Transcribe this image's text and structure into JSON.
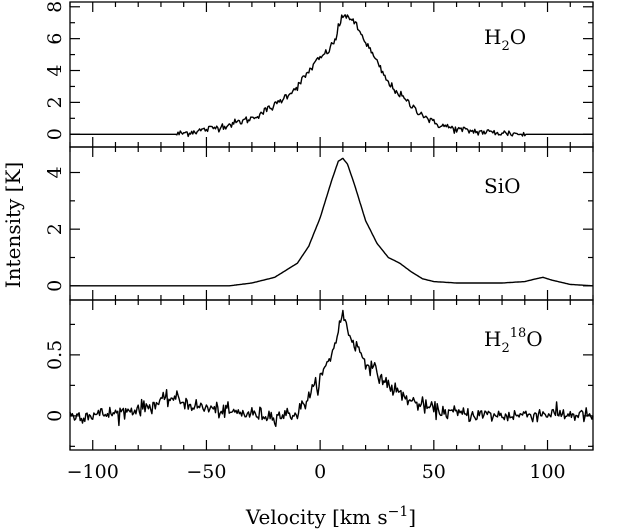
{
  "chart_data": {
    "type": "line",
    "xlabel": "Velocity [km s",
    "xlabel_exponent": "−1",
    "xlabel_close": "]",
    "ylabel": "Intensity [K]",
    "xlim": [
      -110,
      120
    ],
    "x_ticks": [
      -100,
      -50,
      0,
      50,
      100
    ],
    "x_tick_labels": [
      "−100",
      "−50",
      "0",
      "50",
      "100"
    ],
    "panels": [
      {
        "name": "H2O",
        "label_parts": [
          {
            "text": "H",
            "shift": "base"
          },
          {
            "text": "2",
            "shift": "sub"
          },
          {
            "text": "O",
            "shift": "base"
          }
        ],
        "ylim": [
          -0.8,
          8.3
        ],
        "y_ticks": [
          0,
          2,
          4,
          6,
          8
        ],
        "y_tick_labels": [
          "0",
          "2",
          "4",
          "6",
          "8"
        ],
        "noise": 0.12,
        "noise_range": [
          -63,
          90
        ],
        "x": [
          -110,
          -63,
          -50,
          -40,
          -30,
          -20,
          -10,
          -2,
          4,
          7,
          8,
          10,
          12,
          15,
          20,
          25,
          30,
          40,
          50,
          60,
          70,
          80,
          90,
          120
        ],
        "y": [
          0,
          0,
          0.3,
          0.6,
          1.0,
          1.8,
          3.0,
          4.5,
          5.3,
          6.0,
          6.8,
          7.3,
          7.5,
          7.0,
          5.8,
          4.5,
          3.2,
          1.8,
          0.7,
          0.3,
          0.15,
          0.08,
          0,
          0
        ]
      },
      {
        "name": "SiO",
        "label_parts": [
          {
            "text": "SiO",
            "shift": "base"
          }
        ],
        "ylim": [
          -0.5,
          4.9
        ],
        "y_ticks": [
          0,
          2,
          4
        ],
        "y_tick_labels": [
          "0",
          "2",
          "4"
        ],
        "noise": 0,
        "x": [
          -110,
          -40,
          -30,
          -20,
          -10,
          -5,
          0,
          5,
          8,
          10,
          12,
          15,
          20,
          25,
          30,
          35,
          40,
          45,
          50,
          60,
          70,
          80,
          90,
          95,
          98,
          102,
          110,
          120
        ],
        "y": [
          0,
          0,
          0.1,
          0.3,
          0.8,
          1.4,
          2.4,
          3.7,
          4.4,
          4.5,
          4.3,
          3.6,
          2.3,
          1.5,
          1.0,
          0.8,
          0.5,
          0.25,
          0.15,
          0.1,
          0.1,
          0.1,
          0.15,
          0.25,
          0.3,
          0.2,
          0.05,
          0
        ]
      },
      {
        "name": "H2 18O",
        "label_parts": [
          {
            "text": "H",
            "shift": "base"
          },
          {
            "text": "2",
            "shift": "sub"
          },
          {
            "text": "18",
            "shift": "sup"
          },
          {
            "text": "O",
            "shift": "base"
          }
        ],
        "ylim": [
          -0.28,
          0.95
        ],
        "y_ticks": [
          0,
          0.5
        ],
        "y_tick_labels": [
          "0",
          "0.5"
        ],
        "noise": 0.03,
        "x": [
          -110,
          -90,
          -75,
          -65,
          -55,
          -40,
          -20,
          -10,
          0,
          5,
          8,
          10,
          12,
          15,
          20,
          25,
          30,
          40,
          50,
          60,
          80,
          100,
          120
        ],
        "y": [
          0,
          0.02,
          0.08,
          0.15,
          0.08,
          0.03,
          0,
          0.02,
          0.3,
          0.5,
          0.7,
          0.85,
          0.7,
          0.6,
          0.45,
          0.35,
          0.25,
          0.12,
          0.05,
          0.02,
          0,
          0.02,
          0
        ]
      }
    ]
  }
}
